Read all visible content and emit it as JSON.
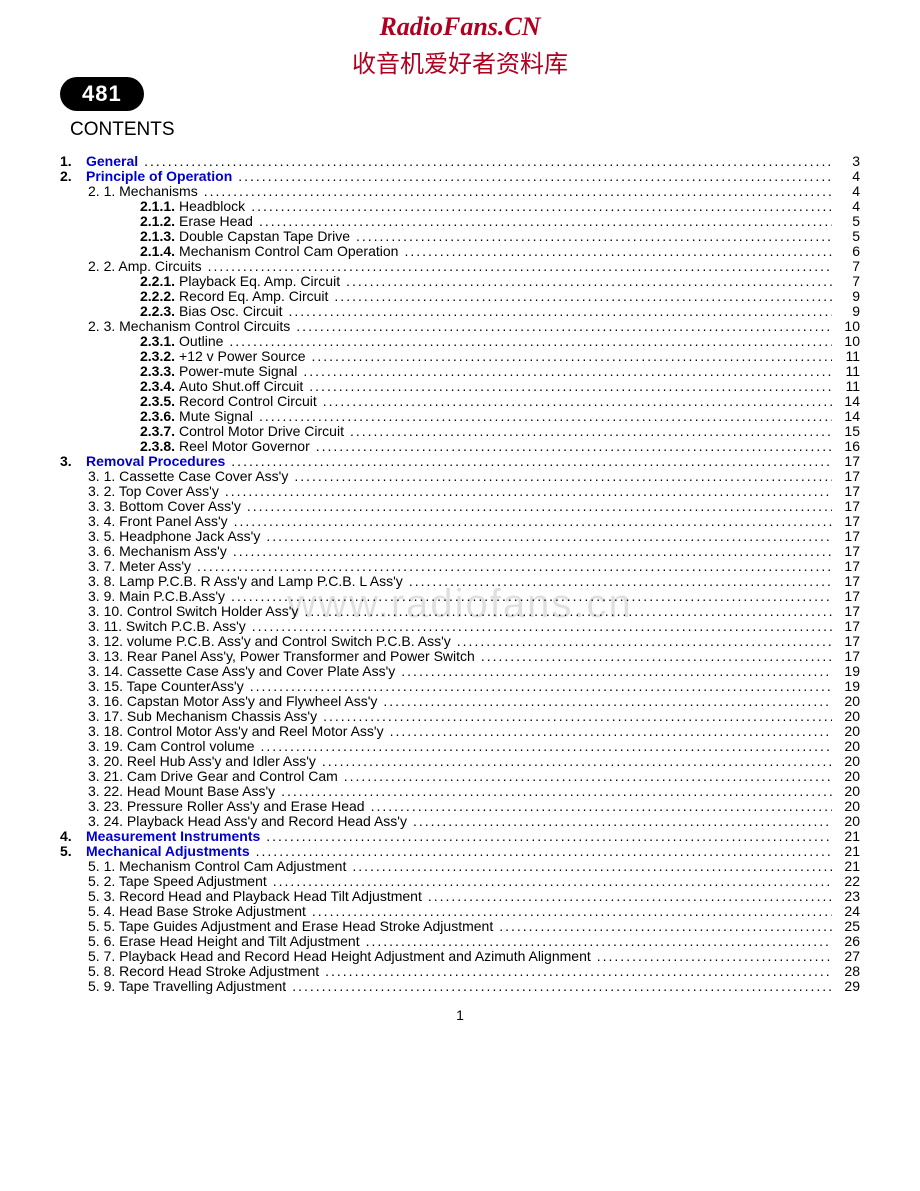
{
  "header": {
    "site": "RadioFans.CN",
    "subtitle": "收音机爱好者资料库",
    "badge": "481"
  },
  "contents_title": "CONTENTS",
  "watermark": "www.radiofans.cn",
  "page_number": "1",
  "toc": [
    {
      "indent": 0,
      "num": "1.",
      "label": "General",
      "link": true,
      "bold": true,
      "page": "3"
    },
    {
      "indent": 0,
      "num": "2.",
      "label": "Principle of Operation",
      "link": true,
      "bold": true,
      "page": "4"
    },
    {
      "indent": 1,
      "num": "",
      "label": "2. 1. Mechanisms",
      "page": "4"
    },
    {
      "indent": 2,
      "num": "2.1.1.",
      "label": "Headblock",
      "page": "4"
    },
    {
      "indent": 2,
      "num": "2.1.2.",
      "label": "Erase Head",
      "page": "5"
    },
    {
      "indent": 2,
      "num": "2.1.3.",
      "label": "Double Capstan Tape Drive",
      "page": "5"
    },
    {
      "indent": 2,
      "num": "2.1.4.",
      "label": "Mechanism Control Cam Operation",
      "page": "6"
    },
    {
      "indent": 1,
      "num": "",
      "label": "2. 2. Amp. Circuits",
      "page": "7"
    },
    {
      "indent": 2,
      "num": "2.2.1.",
      "label": "Playback Eq. Amp. Circuit",
      "page": "7"
    },
    {
      "indent": 2,
      "num": "2.2.2.",
      "label": "Record Eq. Amp. Circuit",
      "page": "9"
    },
    {
      "indent": 2,
      "num": "2.2.3.",
      "label": "Bias Osc. Circuit",
      "page": "9"
    },
    {
      "indent": 1,
      "num": "",
      "label": "2. 3. Mechanism Control Circuits",
      "page": "10"
    },
    {
      "indent": 2,
      "num": "2.3.1.",
      "label": "Outline",
      "page": "10"
    },
    {
      "indent": 2,
      "num": "2.3.2.",
      "label": "+12 v Power Source",
      "page": "11"
    },
    {
      "indent": 2,
      "num": "2.3.3.",
      "label": "Power-mute Signal",
      "page": "11"
    },
    {
      "indent": 2,
      "num": "2.3.4.",
      "label": "Auto Shut.off Circuit",
      "page": "11"
    },
    {
      "indent": 2,
      "num": "2.3.5.",
      "label": "Record Control Circuit",
      "page": "14"
    },
    {
      "indent": 2,
      "num": "2.3.6.",
      "label": "Mute Signal",
      "page": "14"
    },
    {
      "indent": 2,
      "num": "2.3.7.",
      "label": "Control Motor Drive Circuit",
      "page": "15"
    },
    {
      "indent": 2,
      "num": "2.3.8.",
      "label": "Reel Motor Governor",
      "page": "16"
    },
    {
      "indent": 0,
      "num": "3.",
      "label": "Removal Procedures",
      "link": true,
      "bold": true,
      "page": "17"
    },
    {
      "indent": 1,
      "num": "",
      "label": "3. 1. Cassette Case Cover Ass'y",
      "page": "17"
    },
    {
      "indent": 1,
      "num": "",
      "label": "3. 2. Top Cover Ass'y",
      "page": "17"
    },
    {
      "indent": 1,
      "num": "",
      "label": "3. 3. Bottom Cover Ass'y",
      "page": "17"
    },
    {
      "indent": 1,
      "num": "",
      "label": "3. 4. Front Panel Ass'y",
      "page": "17"
    },
    {
      "indent": 1,
      "num": "",
      "label": "3. 5. Headphone Jack Ass'y",
      "page": "17"
    },
    {
      "indent": 1,
      "num": "",
      "label": "3. 6. Mechanism Ass'y",
      "page": "17"
    },
    {
      "indent": 1,
      "num": "",
      "label": "3. 7. Meter Ass'y",
      "page": "17"
    },
    {
      "indent": 1,
      "num": "",
      "label": "3. 8. Lamp P.C.B. R Ass'y and Lamp P.C.B. L Ass'y",
      "page": "17"
    },
    {
      "indent": 1,
      "num": "",
      "label": "3. 9. Main P.C.B.Ass'y",
      "page": "17"
    },
    {
      "indent": 1,
      "num": "",
      "label": "3. 10. Control Switch Holder Ass'y",
      "page": "17"
    },
    {
      "indent": 1,
      "num": "",
      "label": "3. 11. Switch P.C.B. Ass'y",
      "page": "17"
    },
    {
      "indent": 1,
      "num": "",
      "label": "3. 12. volume P.C.B. Ass'y and Control Switch P.C.B. Ass'y",
      "page": "17"
    },
    {
      "indent": 1,
      "num": "",
      "label": "3. 13. Rear Panel Ass'y, Power Transformer and Power Switch",
      "page": "17"
    },
    {
      "indent": 1,
      "num": "",
      "label": "3. 14. Cassette Case Ass'y and Cover Plate Ass'y",
      "page": "19"
    },
    {
      "indent": 1,
      "num": "",
      "label": "3. 15. Tape CounterAss'y",
      "page": "19"
    },
    {
      "indent": 1,
      "num": "",
      "label": "3. 16. Capstan Motor Ass'y and Flywheel Ass'y",
      "page": "20"
    },
    {
      "indent": 1,
      "num": "",
      "label": "3. 17. Sub Mechanism Chassis Ass'y",
      "page": "20"
    },
    {
      "indent": 1,
      "num": "",
      "label": "3. 18. Control Motor Ass'y and Reel Motor Ass'y",
      "page": "20"
    },
    {
      "indent": 1,
      "num": "",
      "label": "3. 19. Cam Control volume",
      "page": "20"
    },
    {
      "indent": 1,
      "num": "",
      "label": "3. 20. Reel Hub Ass'y and Idler Ass'y",
      "page": "20"
    },
    {
      "indent": 1,
      "num": "",
      "label": "3. 21. Cam Drive Gear and Control Cam",
      "page": "20"
    },
    {
      "indent": 1,
      "num": "",
      "label": "3. 22. Head Mount Base Ass'y",
      "page": "20"
    },
    {
      "indent": 1,
      "num": "",
      "label": "3. 23. Pressure Roller Ass'y and Erase Head",
      "page": "20"
    },
    {
      "indent": 1,
      "num": "",
      "label": "3. 24. Playback Head Ass'y and Record Head Ass'y",
      "page": "20"
    },
    {
      "indent": 0,
      "num": "4.",
      "label": "Measurement Instruments",
      "link": true,
      "bold": true,
      "page": "21"
    },
    {
      "indent": 0,
      "num": "5.",
      "label": "Mechanical Adjustments",
      "link": true,
      "bold": true,
      "page": "21"
    },
    {
      "indent": 1,
      "num": "",
      "label": "5. 1. Mechanism Control Cam Adjustment",
      "page": "21"
    },
    {
      "indent": 1,
      "num": "",
      "label": "5. 2. Tape Speed Adjustment",
      "page": "22"
    },
    {
      "indent": 1,
      "num": "",
      "label": "5. 3. Record Head and Playback Head Tilt Adjustment",
      "page": "23"
    },
    {
      "indent": 1,
      "num": "",
      "label": "5. 4. Head Base Stroke Adjustment",
      "page": "24"
    },
    {
      "indent": 1,
      "num": "",
      "label": "5. 5. Tape Guides Adjustment and Erase Head Stroke Adjustment",
      "page": "25"
    },
    {
      "indent": 1,
      "num": "",
      "label": "5. 6. Erase Head Height and Tilt Adjustment",
      "page": "26"
    },
    {
      "indent": 1,
      "num": "",
      "label": "5. 7. Playback Head and Record Head Height Adjustment and Azimuth Alignment",
      "page": "27"
    },
    {
      "indent": 1,
      "num": "",
      "label": "5. 8. Record Head Stroke Adjustment",
      "page": "28"
    },
    {
      "indent": 1,
      "num": "",
      "label": "5. 9. Tape Travelling Adjustment",
      "page": "29"
    }
  ]
}
